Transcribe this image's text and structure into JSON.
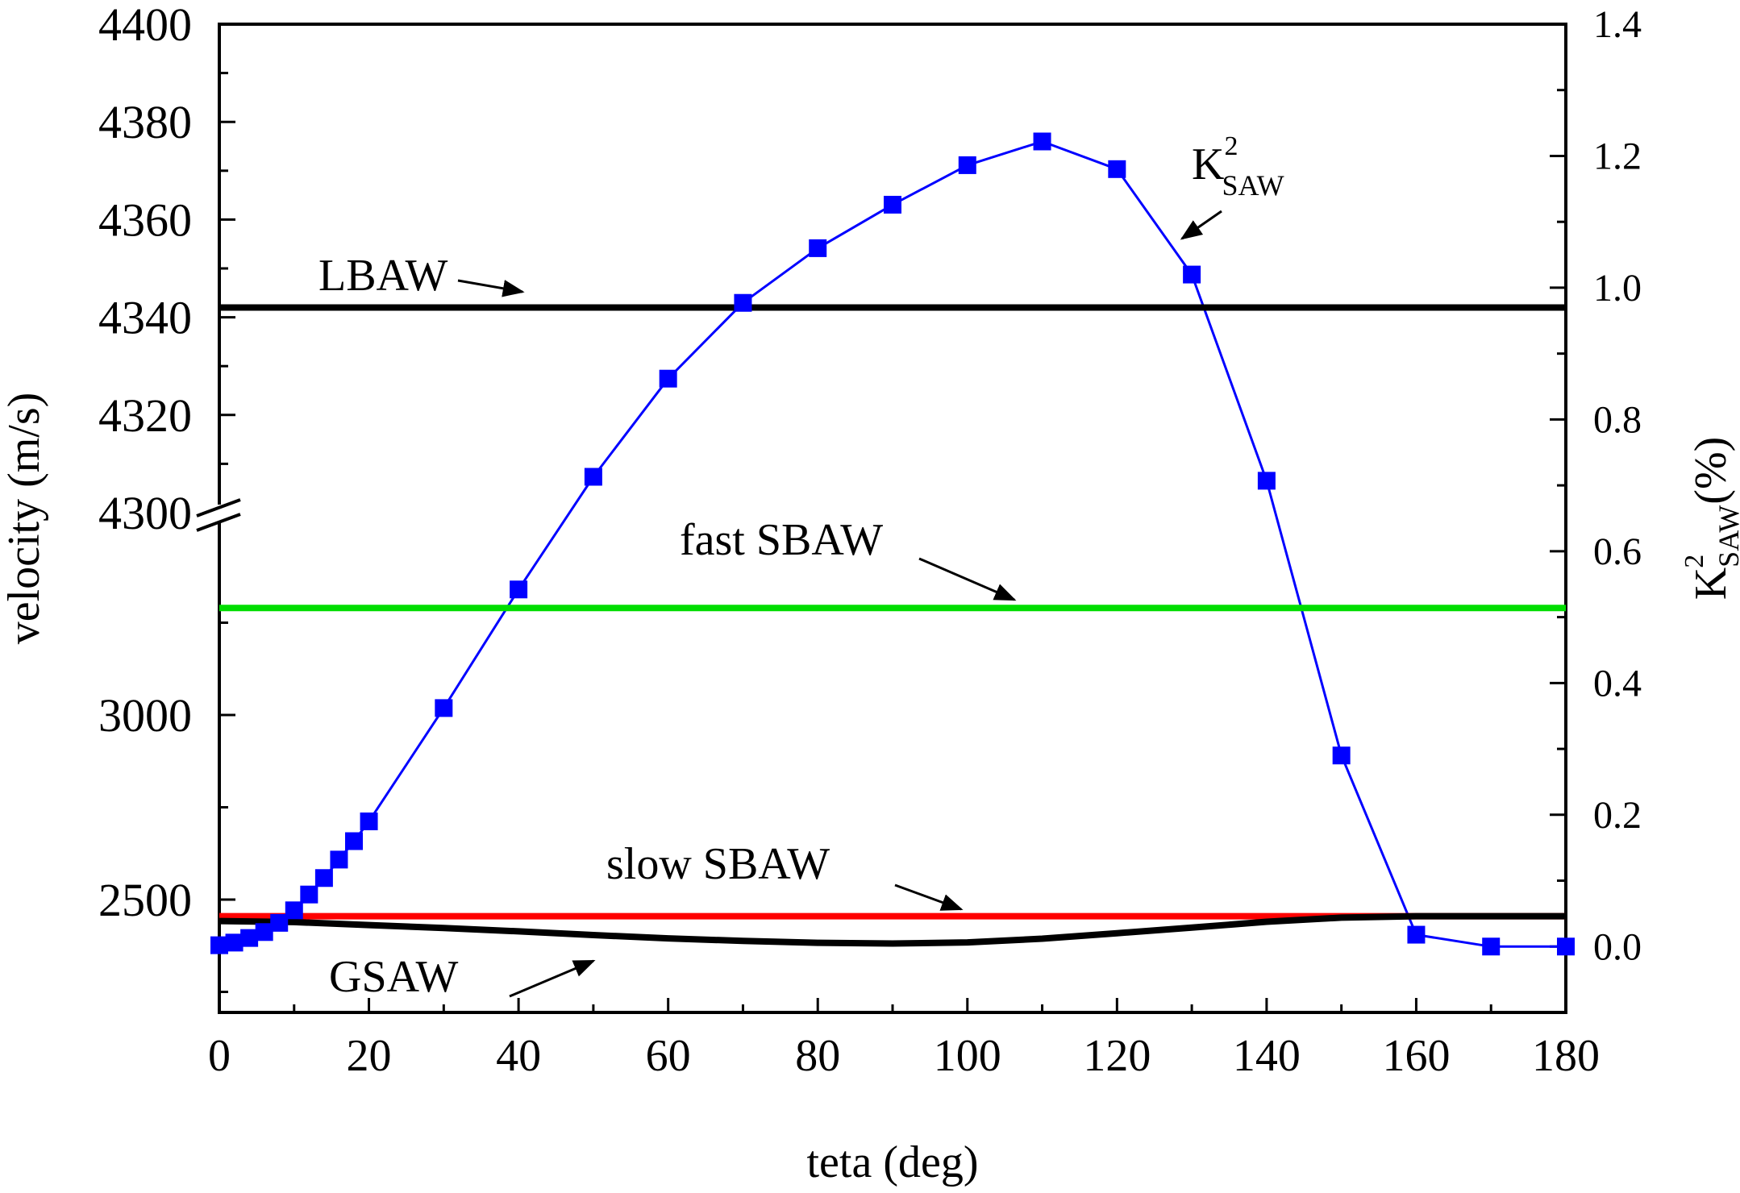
{
  "chart_data": {
    "type": "line",
    "x_axis": {
      "label": "teta (deg)",
      "ticks": [
        0,
        20,
        40,
        60,
        80,
        100,
        120,
        140,
        160,
        180
      ],
      "range": [
        0,
        180
      ]
    },
    "y_axis_left": {
      "label": "velocity (m/s)",
      "break": true,
      "upper_segment": {
        "range": [
          4300,
          4400
        ],
        "ticks": [
          4300,
          4320,
          4340,
          4360,
          4380,
          4400
        ]
      },
      "lower_segment": {
        "ticks": [
          2500,
          3000
        ]
      },
      "tick_labels": [
        "4400",
        "4380",
        "4360",
        "4340",
        "4320",
        "4300",
        "3000",
        "2500"
      ]
    },
    "y_axis_right": {
      "label_base": "K",
      "label_sup": "2",
      "label_sub": "SAW",
      "label_unit": "(%)",
      "range": [
        -0.1,
        1.4
      ],
      "ticks": [
        "0.0",
        "0.2",
        "0.4",
        "0.6",
        "0.8",
        "1.0",
        "1.2",
        "1.4"
      ]
    },
    "series": [
      {
        "name": "K2_SAW",
        "axis": "right",
        "color": "#0000ff",
        "marker": "square",
        "x": [
          0,
          2,
          4,
          6,
          8,
          10,
          12,
          14,
          16,
          18,
          20,
          30,
          40,
          50,
          60,
          70,
          80,
          90,
          100,
          110,
          120,
          130,
          140,
          150,
          160,
          170,
          180
        ],
        "values": [
          0.002,
          0.006,
          0.013,
          0.022,
          0.036,
          0.055,
          0.079,
          0.104,
          0.132,
          0.16,
          0.19,
          0.362,
          0.542,
          0.713,
          0.862,
          0.977,
          1.06,
          1.126,
          1.186,
          1.222,
          1.18,
          1.02,
          0.707,
          0.29,
          0.018,
          0.0,
          0.0
        ]
      },
      {
        "name": "LBAW",
        "axis": "left",
        "color": "#000000",
        "x": [
          0,
          180
        ],
        "values": [
          4342,
          4342
        ]
      },
      {
        "name": "fast SBAW",
        "axis": "left",
        "color": "#00dd00",
        "x": [
          0,
          180
        ],
        "values": [
          3290,
          3290
        ]
      },
      {
        "name": "slow SBAW",
        "axis": "left",
        "color": "#ff0000",
        "x": [
          0,
          180
        ],
        "values": [
          2455,
          2455
        ]
      },
      {
        "name": "GSAW",
        "axis": "left",
        "color": "#000000",
        "x": [
          0,
          10,
          20,
          30,
          40,
          50,
          60,
          70,
          80,
          90,
          100,
          110,
          120,
          130,
          140,
          150,
          160,
          170,
          180
        ],
        "values": [
          2442,
          2439,
          2431,
          2423,
          2414,
          2404,
          2395,
          2388,
          2383,
          2381,
          2384,
          2394,
          2409,
          2424,
          2440,
          2451,
          2455,
          2455,
          2455
        ]
      }
    ],
    "annotations": [
      {
        "text": "LBAW",
        "target": "LBAW"
      },
      {
        "text": "fast SBAW",
        "target": "fast SBAW"
      },
      {
        "text": "slow SBAW",
        "target": "slow SBAW"
      },
      {
        "text": "GSAW",
        "target": "GSAW"
      },
      {
        "text_base": "K",
        "text_sup": "2",
        "text_sub": "SAW",
        "target": "K2_SAW"
      }
    ]
  }
}
